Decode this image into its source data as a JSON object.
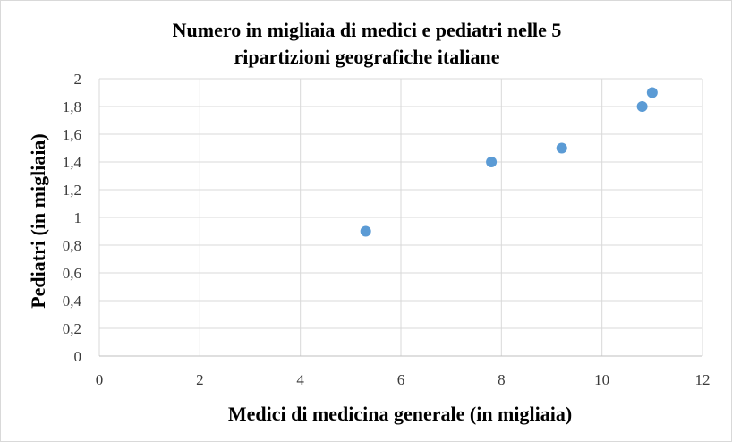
{
  "chart_data": {
    "type": "scatter",
    "title_lines": [
      "Numero in migliaia di medici e pediatri nelle 5",
      "ripartizioni geografiche italiane"
    ],
    "xlabel": "Medici di medicina generale (in migliaia)",
    "ylabel": "Pediatri (in migliaia)",
    "xlim": [
      0,
      12
    ],
    "ylim": [
      0,
      2
    ],
    "x_ticks": [
      "0",
      "2",
      "4",
      "6",
      "8",
      "10",
      "12"
    ],
    "y_ticks": [
      "0",
      "0,2",
      "0,4",
      "0,6",
      "0,8",
      "1",
      "1,2",
      "1,4",
      "1,6",
      "1,8",
      "2"
    ],
    "grid": true,
    "legend": "none",
    "marker_color": "#5b9bd5",
    "series": [
      {
        "points": [
          {
            "x": 5.3,
            "y": 0.9
          },
          {
            "x": 7.8,
            "y": 1.4
          },
          {
            "x": 9.2,
            "y": 1.5
          },
          {
            "x": 10.8,
            "y": 1.8
          },
          {
            "x": 11.0,
            "y": 1.9
          }
        ]
      }
    ]
  }
}
